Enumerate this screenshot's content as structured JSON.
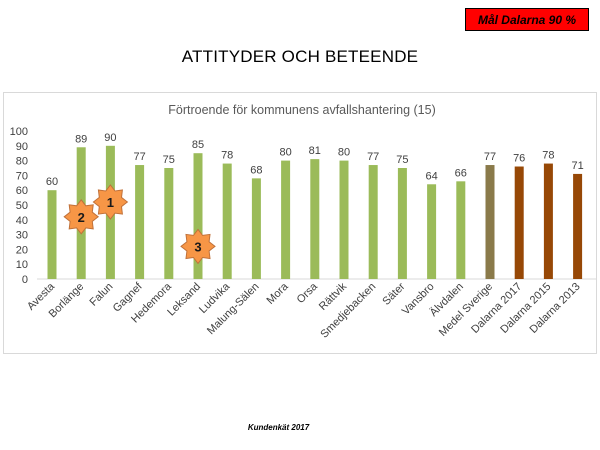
{
  "goal_label": "Mål Dalarna 90 %",
  "slide_title": "ATTITYDER OCH BETEENDE",
  "footer": "Kundenkät 2017",
  "colors": {
    "municipality": "#9bbb59",
    "average": "#8a7a4a",
    "dalarna": "#974806",
    "badge": "#f79646",
    "goal_box": "#ff0000"
  },
  "chart_data": {
    "type": "bar",
    "title": "Förtroende för kommunens avfallshantering (15)",
    "categories": [
      "Avesta",
      "Borlänge",
      "Falun",
      "Gagnef",
      "Hedemora",
      "Leksand",
      "Ludvika",
      "Malung-Sälen",
      "Mora",
      "Orsa",
      "Rättvik",
      "Smedjebacken",
      "Säter",
      "Vansbro",
      "Älvdalen",
      "Medel Sverige",
      "Dalarna 2017",
      "Dalarna 2015",
      "Dalarna 2013"
    ],
    "values": [
      60,
      89,
      90,
      77,
      75,
      85,
      78,
      68,
      80,
      81,
      80,
      77,
      75,
      64,
      66,
      77,
      76,
      78,
      71
    ],
    "bar_groups": [
      "municipality",
      "municipality",
      "municipality",
      "municipality",
      "municipality",
      "municipality",
      "municipality",
      "municipality",
      "municipality",
      "municipality",
      "municipality",
      "municipality",
      "municipality",
      "municipality",
      "municipality",
      "average",
      "dalarna",
      "dalarna",
      "dalarna"
    ],
    "ylim": [
      0,
      100
    ],
    "yticks": [
      0,
      10,
      20,
      30,
      40,
      50,
      60,
      70,
      80,
      90,
      100
    ],
    "grid": false,
    "annotations": [
      {
        "label": "1",
        "category": "Falun",
        "value": 52
      },
      {
        "label": "2",
        "category": "Borlänge",
        "value": 42
      },
      {
        "label": "3",
        "category": "Leksand",
        "value": 22
      }
    ]
  }
}
